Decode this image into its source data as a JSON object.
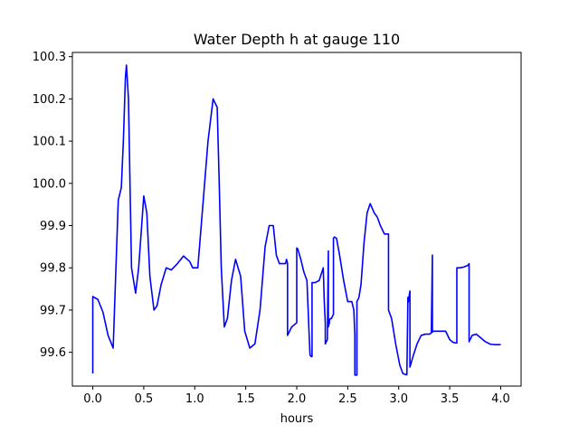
{
  "chart_data": {
    "type": "line",
    "title": "Water Depth h at gauge 110",
    "xlabel": "hours",
    "ylabel": "",
    "xlim": [
      -0.2,
      4.2
    ],
    "ylim": [
      99.52,
      100.31
    ],
    "xticks": [
      0.0,
      0.5,
      1.0,
      1.5,
      2.0,
      2.5,
      3.0,
      3.5,
      4.0
    ],
    "xtick_labels": [
      "0.0",
      "0.5",
      "1.0",
      "1.5",
      "2.0",
      "2.5",
      "3.0",
      "3.5",
      "4.0"
    ],
    "yticks": [
      99.6,
      99.7,
      99.8,
      99.9,
      100.0,
      100.1,
      100.2,
      100.3
    ],
    "ytick_labels": [
      "99.6",
      "99.7",
      "99.8",
      "99.9",
      "100.0",
      "100.1",
      "100.2",
      "100.3"
    ],
    "grid": false,
    "line_color": "#0000ff",
    "series": [
      {
        "x": [
          0.0,
          0.0,
          0.05,
          0.1,
          0.15,
          0.2,
          0.25,
          0.28,
          0.3,
          0.32,
          0.33,
          0.35,
          0.38,
          0.42,
          0.45,
          0.5,
          0.53,
          0.56,
          0.6,
          0.63,
          0.67,
          0.72,
          0.77,
          0.83,
          0.89,
          0.95,
          0.98,
          1.03,
          1.08,
          1.13,
          1.18,
          1.22,
          1.24,
          1.26,
          1.29,
          1.32,
          1.36,
          1.4,
          1.45,
          1.49,
          1.54,
          1.59,
          1.64,
          1.69,
          1.73,
          1.77,
          1.8,
          1.83,
          1.86,
          1.89,
          1.9,
          1.91,
          1.91,
          1.95,
          2.0,
          2.0,
          2.01,
          2.04,
          2.07,
          2.1,
          2.13,
          2.14,
          2.15,
          2.15,
          2.18,
          2.22,
          2.26,
          2.27,
          2.28,
          2.28,
          2.3,
          2.31,
          2.31,
          2.32,
          2.32,
          2.33,
          2.34,
          2.35,
          2.36,
          2.36,
          2.37,
          2.39,
          2.42,
          2.46,
          2.5,
          2.54,
          2.56,
          2.57,
          2.57,
          2.58,
          2.59,
          2.59,
          2.61,
          2.63,
          2.66,
          2.69,
          2.72,
          2.76,
          2.79,
          2.82,
          2.86,
          2.88,
          2.9,
          2.9,
          2.93,
          2.97,
          3.01,
          3.04,
          3.07,
          3.08,
          3.09,
          3.1,
          3.1,
          3.11,
          3.11,
          3.14,
          3.18,
          3.22,
          3.26,
          3.3,
          3.32,
          3.32,
          3.33,
          3.33,
          3.34,
          3.34,
          3.38,
          3.42,
          3.46,
          3.5,
          3.53,
          3.56,
          3.57,
          3.57,
          3.6,
          3.64,
          3.68,
          3.69,
          3.69,
          3.72,
          3.76,
          3.8,
          3.85,
          3.9,
          3.95,
          4.0
        ],
        "y": [
          99.55,
          99.732,
          99.725,
          99.695,
          99.64,
          99.61,
          99.96,
          99.99,
          100.1,
          100.25,
          100.28,
          100.2,
          99.8,
          99.74,
          99.8,
          99.97,
          99.93,
          99.78,
          99.7,
          99.71,
          99.76,
          99.8,
          99.795,
          99.81,
          99.828,
          99.815,
          99.8,
          99.8,
          99.95,
          100.1,
          100.2,
          100.18,
          100.0,
          99.8,
          99.66,
          99.68,
          99.77,
          99.82,
          99.78,
          99.65,
          99.61,
          99.62,
          99.7,
          99.85,
          99.9,
          99.9,
          99.83,
          99.81,
          99.81,
          99.81,
          99.82,
          99.81,
          99.64,
          99.66,
          99.67,
          99.847,
          99.845,
          99.82,
          99.79,
          99.77,
          99.594,
          99.59,
          99.59,
          99.765,
          99.765,
          99.77,
          99.8,
          99.72,
          99.67,
          99.62,
          99.63,
          99.84,
          99.66,
          99.67,
          99.675,
          99.68,
          99.68,
          99.685,
          99.69,
          99.87,
          99.873,
          99.87,
          99.83,
          99.77,
          99.72,
          99.72,
          99.7,
          99.64,
          99.546,
          99.546,
          99.546,
          99.72,
          99.73,
          99.76,
          99.86,
          99.93,
          99.952,
          99.93,
          99.92,
          99.9,
          99.88,
          99.88,
          99.88,
          99.7,
          99.68,
          99.62,
          99.57,
          99.55,
          99.547,
          99.547,
          99.73,
          99.72,
          99.73,
          99.745,
          99.565,
          99.59,
          99.62,
          99.64,
          99.643,
          99.643,
          99.646,
          99.648,
          99.83,
          99.648,
          99.65,
          99.65,
          99.65,
          99.65,
          99.65,
          99.63,
          99.624,
          99.622,
          99.622,
          99.8,
          99.8,
          99.802,
          99.806,
          99.81,
          99.625,
          99.64,
          99.643,
          99.635,
          99.625,
          99.619,
          99.618,
          99.618
        ]
      }
    ]
  }
}
